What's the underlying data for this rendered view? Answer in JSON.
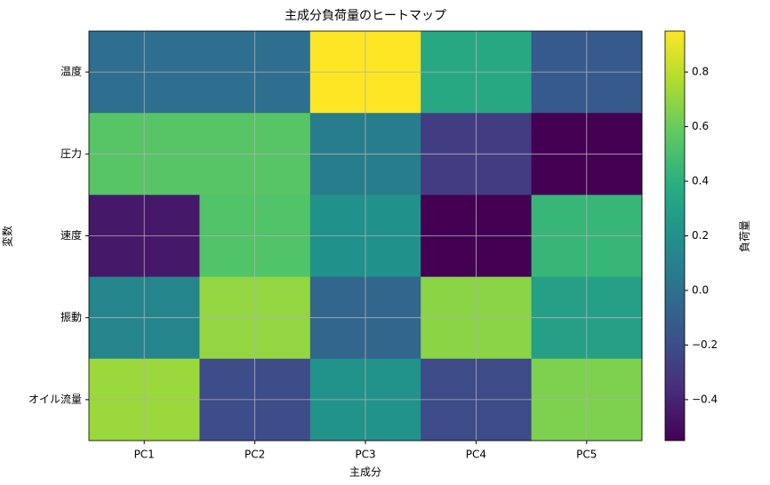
{
  "chart_data": {
    "type": "heatmap",
    "title": "主成分負荷量のヒートマップ",
    "x_label": "主成分",
    "y_label": "変数",
    "colorbar_label": "負荷量",
    "x_categories": [
      "PC1",
      "PC2",
      "PC3",
      "PC4",
      "PC5"
    ],
    "y_categories": [
      "温度",
      "圧力",
      "速度",
      "振動",
      "オイル流量"
    ],
    "values": [
      [
        -0.01,
        -0.01,
        0.95,
        0.35,
        -0.13
      ],
      [
        0.55,
        0.55,
        0.08,
        -0.28,
        -0.55
      ],
      [
        -0.45,
        0.53,
        0.2,
        -0.55,
        0.44
      ],
      [
        0.13,
        0.7,
        -0.06,
        0.68,
        0.3
      ],
      [
        0.72,
        -0.2,
        0.21,
        -0.21,
        0.65
      ]
    ],
    "colormap": "viridis",
    "clim": [
      -0.55,
      0.95
    ],
    "cticks": [
      {
        "value": -0.4,
        "label": "−0.4"
      },
      {
        "value": -0.2,
        "label": "−0.2"
      },
      {
        "value": 0,
        "label": "0.0"
      },
      0.2,
      0.4,
      0.6,
      0.8
    ],
    "grid": true
  }
}
